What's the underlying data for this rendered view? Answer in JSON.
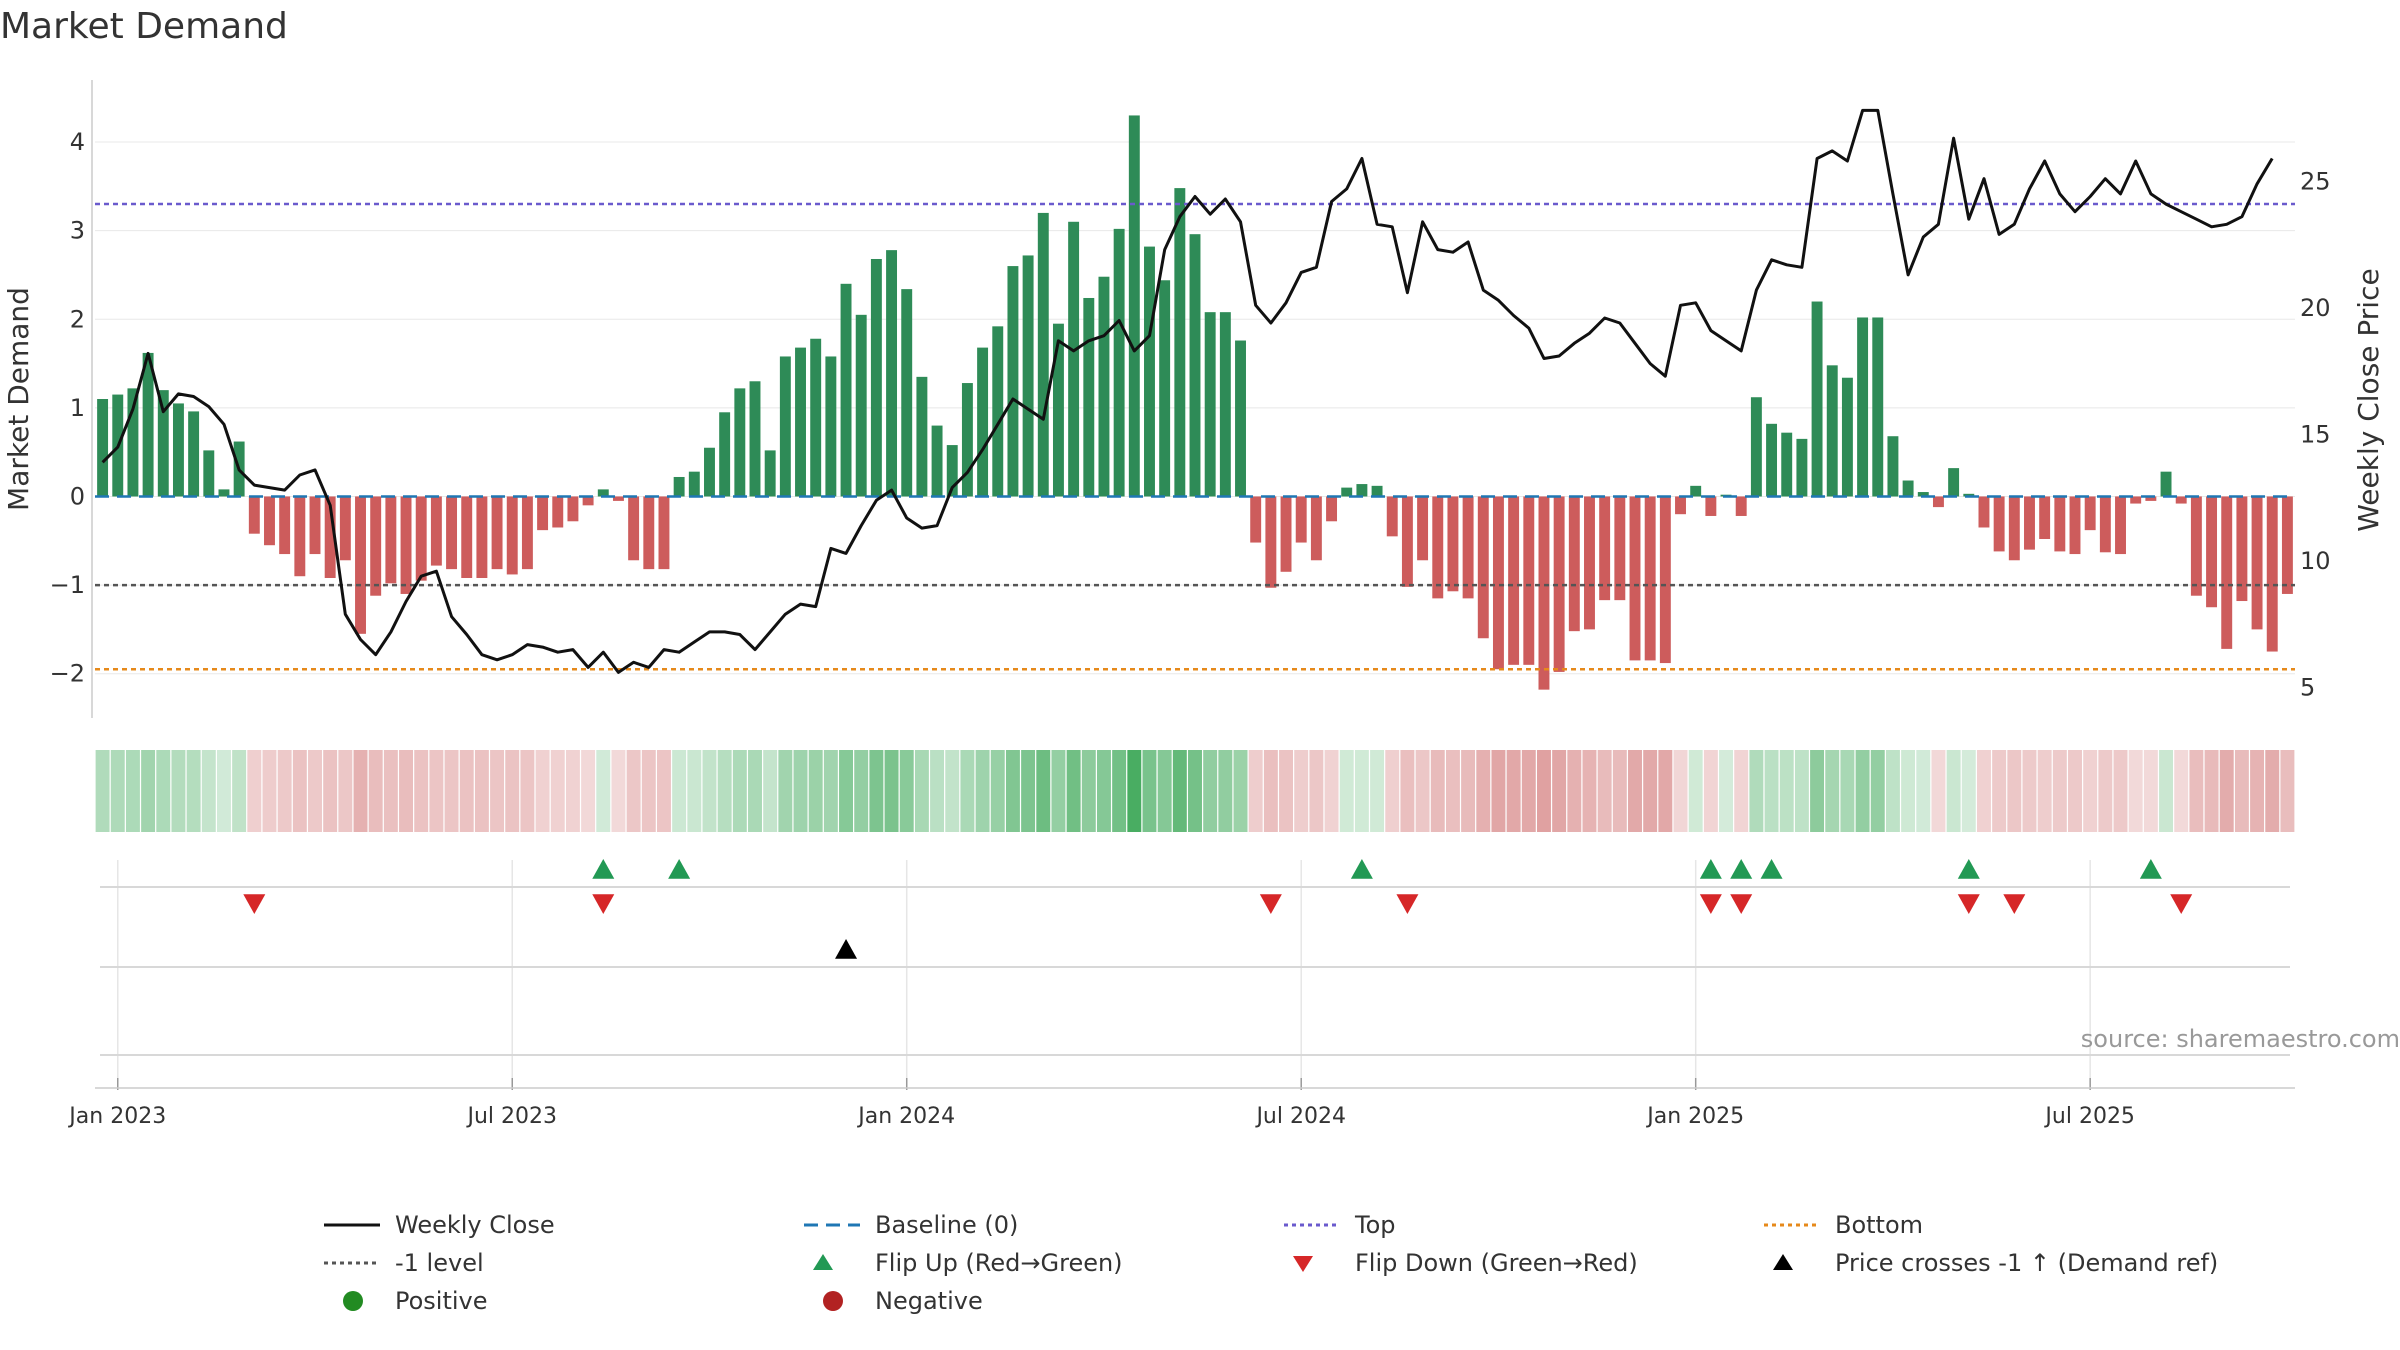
{
  "title": "Market Demand",
  "source_text": "source: sharemaestro.com",
  "colors": {
    "positive": "#2e8b57",
    "negative": "#cd5c5c",
    "price": "#111111",
    "baseline": "#1f77b4",
    "top": "#6a5acd",
    "bottom": "#e6891a",
    "minus_one": "#555555",
    "flip_up": "#229954",
    "flip_down": "#d62728",
    "cross": "#000000"
  },
  "chart_data": {
    "type": "bar",
    "title": "Market Demand",
    "ylabel": "Market Demand",
    "y2label": "Weekly Close Price",
    "ylim": [
      -2.5,
      4.7
    ],
    "yticks": [
      -2,
      -1,
      0,
      1,
      2,
      3,
      4
    ],
    "y2lim": [
      3.8,
      29.0
    ],
    "y2ticks": [
      5,
      10,
      15,
      20,
      25
    ],
    "x_start": "2022-12-26",
    "x_step_days": 7,
    "xlim": [
      "2022-12-26",
      "2025-09-15"
    ],
    "xticks": [
      {
        "label": "Jan 2023",
        "week": 1
      },
      {
        "label": "Jul 2023",
        "week": 27
      },
      {
        "label": "Jan 2024",
        "week": 53
      },
      {
        "label": "Jul 2024",
        "week": 79
      },
      {
        "label": "Jan 2025",
        "week": 105
      },
      {
        "label": "Jul 2025",
        "week": 131
      }
    ],
    "demand": [
      1.1,
      1.15,
      1.22,
      1.62,
      1.2,
      1.05,
      0.96,
      0.52,
      0.08,
      0.62,
      -0.42,
      -0.55,
      -0.65,
      -0.9,
      -0.65,
      -0.92,
      -0.72,
      -1.55,
      -1.12,
      -0.98,
      -1.1,
      -0.95,
      -0.78,
      -0.82,
      -0.92,
      -0.92,
      -0.82,
      -0.88,
      -0.82,
      -0.38,
      -0.35,
      -0.28,
      -0.1,
      0.08,
      -0.05,
      -0.72,
      -0.82,
      -0.82,
      0.22,
      0.28,
      0.55,
      0.95,
      1.22,
      1.3,
      0.52,
      1.58,
      1.68,
      1.78,
      1.58,
      2.4,
      2.05,
      2.68,
      2.78,
      2.34,
      1.35,
      0.8,
      0.58,
      1.28,
      1.68,
      1.92,
      2.6,
      2.72,
      3.2,
      1.95,
      3.1,
      2.24,
      2.48,
      3.02,
      4.3,
      2.82,
      2.44,
      3.48,
      2.96,
      2.08,
      2.08,
      1.76,
      -0.52,
      -1.03,
      -0.85,
      -0.52,
      -0.72,
      -0.28,
      0.1,
      0.14,
      0.12,
      -0.45,
      -1.02,
      -0.72,
      -1.15,
      -1.07,
      -1.15,
      -1.6,
      -1.95,
      -1.9,
      -1.9,
      -2.18,
      -1.98,
      -1.52,
      -1.5,
      -1.17,
      -1.17,
      -1.85,
      -1.85,
      -1.88,
      -0.2,
      0.12,
      -0.22,
      0.02,
      -0.22,
      1.12,
      0.82,
      0.72,
      0.65,
      2.2,
      1.48,
      1.34,
      2.02,
      2.02,
      0.68,
      0.18,
      0.05,
      -0.12,
      0.32,
      0.03,
      -0.35,
      -0.62,
      -0.72,
      -0.6,
      -0.48,
      -0.62,
      -0.65,
      -0.38,
      -0.63,
      -0.65,
      -0.08,
      -0.05,
      0.28,
      -0.08,
      -1.12,
      -1.25,
      -1.72,
      -1.18,
      -1.5,
      -1.75,
      -1.1
    ],
    "price": [
      13.9,
      14.5,
      16.0,
      18.2,
      15.9,
      16.6,
      16.5,
      16.1,
      15.4,
      13.6,
      13.0,
      12.9,
      12.8,
      13.4,
      13.6,
      12.2,
      7.9,
      6.9,
      6.3,
      7.2,
      8.4,
      9.4,
      9.6,
      7.8,
      7.1,
      6.3,
      6.1,
      6.3,
      6.7,
      6.6,
      6.4,
      6.5,
      5.8,
      6.4,
      5.6,
      6.0,
      5.8,
      6.5,
      6.4,
      6.8,
      7.2,
      7.2,
      7.1,
      6.5,
      7.2,
      7.9,
      8.3,
      8.2,
      10.5,
      10.3,
      11.4,
      12.4,
      12.8,
      11.7,
      11.3,
      11.4,
      12.9,
      13.5,
      14.4,
      15.4,
      16.4,
      16.0,
      15.6,
      18.7,
      18.3,
      18.7,
      18.9,
      19.5,
      18.3,
      18.9,
      22.3,
      23.6,
      24.4,
      23.7,
      24.3,
      23.4,
      20.1,
      19.4,
      20.2,
      21.4,
      21.6,
      24.2,
      24.7,
      25.9,
      23.3,
      23.2,
      20.6,
      23.4,
      22.3,
      22.2,
      22.6,
      20.7,
      20.3,
      19.7,
      19.2,
      18.0,
      18.1,
      18.6,
      19.0,
      19.6,
      19.4,
      18.6,
      17.8,
      17.3,
      20.1,
      20.2,
      19.1,
      18.7,
      18.3,
      20.7,
      21.9,
      21.7,
      21.6,
      25.9,
      26.2,
      25.8,
      27.8,
      27.8,
      24.5,
      21.3,
      22.8,
      23.3,
      26.7,
      23.5,
      25.1,
      22.9,
      23.3,
      24.7,
      25.8,
      24.5,
      23.8,
      24.4,
      25.1,
      24.5,
      25.8,
      24.5,
      24.1,
      23.8,
      23.5,
      23.2,
      23.3,
      23.6,
      24.9,
      25.9
    ],
    "levels": {
      "top": 3.3,
      "minus_one": -1.0,
      "bottom": -1.95,
      "baseline": 0
    },
    "flip_up_weeks": [
      33,
      38,
      83,
      106,
      108,
      110,
      123,
      135
    ],
    "flip_down_weeks": [
      10,
      33,
      77,
      86,
      106,
      108,
      123,
      126,
      137
    ],
    "price_cross_weeks": [
      49
    ],
    "legend": [
      {
        "key": "weekly_close",
        "label": "Weekly Close"
      },
      {
        "key": "baseline",
        "label": "Baseline (0)"
      },
      {
        "key": "top",
        "label": "Top"
      },
      {
        "key": "bottom",
        "label": "Bottom"
      },
      {
        "key": "minus_one",
        "label": "-1 level"
      },
      {
        "key": "flip_up",
        "label": "Flip Up (Red→Green)"
      },
      {
        "key": "flip_down",
        "label": "Flip Down (Green→Red)"
      },
      {
        "key": "cross",
        "label": "Price crosses -1 ↑ (Demand ref)"
      },
      {
        "key": "positive",
        "label": "Positive"
      },
      {
        "key": "negative",
        "label": "Negative"
      }
    ]
  }
}
